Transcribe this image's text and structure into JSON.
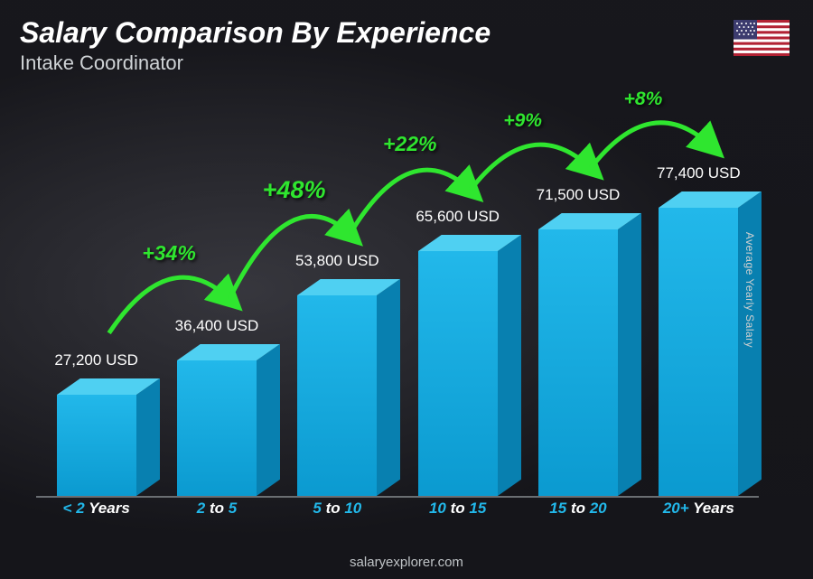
{
  "header": {
    "title": "Salary Comparison By Experience",
    "subtitle": "Intake Coordinator"
  },
  "side_label": "Average Yearly Salary",
  "footer": "salaryexplorer.com",
  "flag": {
    "country": "United States",
    "stripe_red": "#b22234",
    "stripe_white": "#ffffff",
    "canton": "#3c3b6e"
  },
  "chart": {
    "type": "bar",
    "currency": "USD",
    "max_value": 80000,
    "bar_colors": {
      "front_top": "#22b8ea",
      "front_bottom": "#0b9ad0",
      "cap": "#4fd0f2",
      "side": "#0880b0"
    },
    "categories": [
      {
        "prefix": "< ",
        "num": "2",
        "suffix": " Years"
      },
      {
        "prefix": "",
        "num": "2",
        "mid": " to ",
        "num2": "5",
        "suffix": ""
      },
      {
        "prefix": "",
        "num": "5",
        "mid": " to ",
        "num2": "10",
        "suffix": ""
      },
      {
        "prefix": "",
        "num": "10",
        "mid": " to ",
        "num2": "15",
        "suffix": ""
      },
      {
        "prefix": "",
        "num": "15",
        "mid": " to ",
        "num2": "20",
        "suffix": ""
      },
      {
        "prefix": "",
        "num": "20+",
        "suffix": " Years"
      }
    ],
    "values": [
      27200,
      36400,
      53800,
      65600,
      71500,
      77400
    ],
    "value_labels": [
      "27,200 USD",
      "36,400 USD",
      "53,800 USD",
      "65,600 USD",
      "71,500 USD",
      "77,400 USD"
    ],
    "increases": [
      {
        "label": "+34%",
        "color": "#2fe62f",
        "fontsize": 23
      },
      {
        "label": "+48%",
        "color": "#2fe62f",
        "fontsize": 27
      },
      {
        "label": "+22%",
        "color": "#2fe62f",
        "fontsize": 23
      },
      {
        "label": "+9%",
        "color": "#2fe62f",
        "fontsize": 21
      },
      {
        "label": "+8%",
        "color": "#2fe62f",
        "fontsize": 21
      }
    ],
    "category_text_color": "#ffffff",
    "category_highlight_color": "#22b8ea",
    "value_text_color": "#ffffff"
  }
}
